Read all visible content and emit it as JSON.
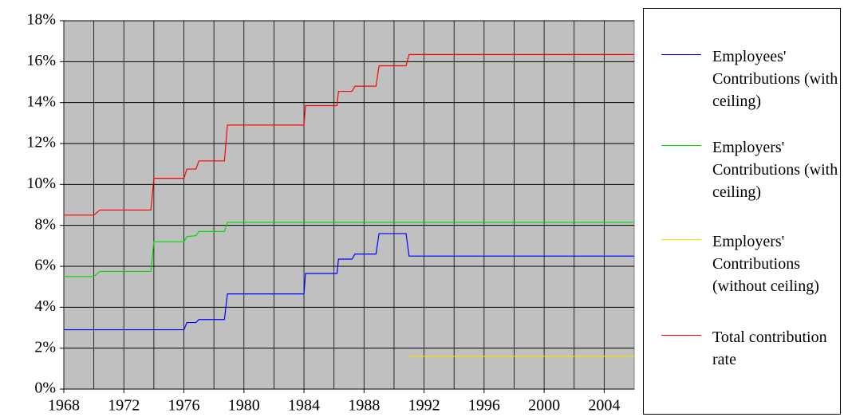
{
  "chart_data": {
    "type": "line",
    "xlim": [
      1968,
      2006
    ],
    "xticks": [
      1968,
      1972,
      1976,
      1980,
      1984,
      1988,
      1992,
      1996,
      2000,
      2004
    ],
    "ylim": [
      0,
      18
    ],
    "yticks": [
      {
        "value": 0,
        "label": "0%"
      },
      {
        "value": 2,
        "label": "2%"
      },
      {
        "value": 4,
        "label": "4%"
      },
      {
        "value": 6,
        "label": "6%"
      },
      {
        "value": 8,
        "label": "8%"
      },
      {
        "value": 10,
        "label": "10%"
      },
      {
        "value": 12,
        "label": "12%"
      },
      {
        "value": 14,
        "label": "14%"
      },
      {
        "value": 16,
        "label": "16%"
      },
      {
        "value": 18,
        "label": "18%"
      }
    ],
    "grid": true,
    "minor_grid": true,
    "plot_background": "#c0c0c0",
    "legend": "right",
    "series": [
      {
        "name": "Employees' Contributions (with ceiling)",
        "color": "#0000ff",
        "x": [
          1968,
          1976,
          1976.2,
          1976.8,
          1977,
          1978.7,
          1978.9,
          1984,
          1984.1,
          1986.2,
          1986.3,
          1987.2,
          1987.4,
          1988.8,
          1989,
          1990.8,
          1991,
          2006
        ],
        "values": [
          2.9,
          2.9,
          3.25,
          3.25,
          3.4,
          3.4,
          4.65,
          4.65,
          5.65,
          5.65,
          6.35,
          6.35,
          6.6,
          6.6,
          7.6,
          7.6,
          6.5,
          6.5
        ]
      },
      {
        "name": "Employers' Contributions (with ceiling)",
        "color": "#00dd00",
        "x": [
          1968,
          1970,
          1970.4,
          1973.8,
          1974,
          1976,
          1976.2,
          1976.8,
          1977,
          1978.7,
          1978.9,
          2006
        ],
        "values": [
          5.5,
          5.5,
          5.75,
          5.75,
          7.2,
          7.2,
          7.45,
          7.5,
          7.7,
          7.7,
          8.15,
          8.15
        ]
      },
      {
        "name": "Employers' Contributions (without ceiling)",
        "color": "#e8e800",
        "x": [
          1991,
          2006
        ],
        "values": [
          1.6,
          1.6
        ]
      },
      {
        "name": "Total contribution rate",
        "color": "#ff0000",
        "x": [
          1968,
          1970,
          1970.4,
          1973.8,
          1974,
          1976,
          1976.2,
          1976.8,
          1977,
          1978.7,
          1978.9,
          1984,
          1984.1,
          1986.2,
          1986.3,
          1987.2,
          1987.4,
          1988.8,
          1989,
          1990.8,
          1991,
          2006
        ],
        "values": [
          8.5,
          8.5,
          8.75,
          8.75,
          10.3,
          10.3,
          10.75,
          10.75,
          11.15,
          11.15,
          12.9,
          12.9,
          13.85,
          13.85,
          14.55,
          14.55,
          14.8,
          14.8,
          15.8,
          15.8,
          16.35,
          16.35
        ]
      }
    ]
  }
}
